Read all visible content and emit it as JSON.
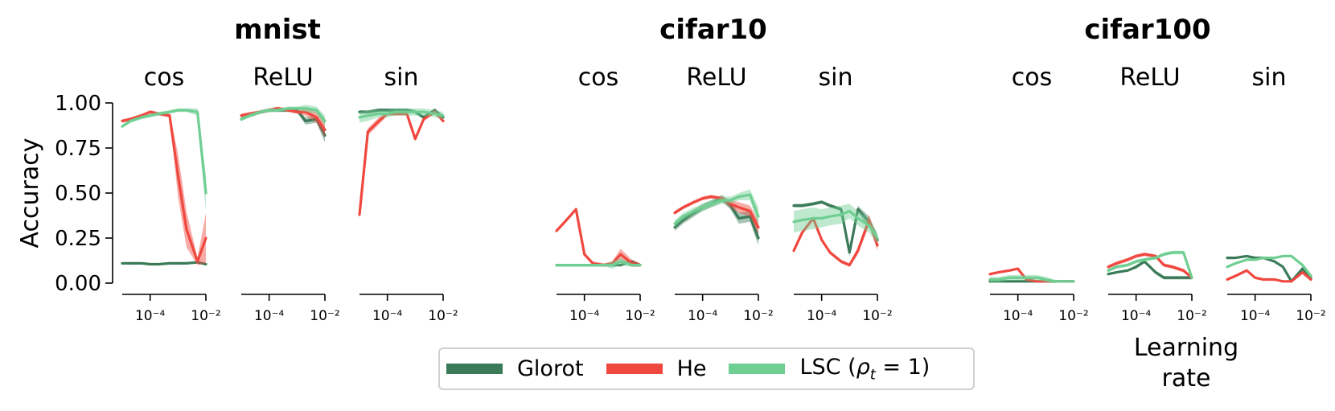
{
  "colors": {
    "glorot": "#3a7a58",
    "he": "#f0473f",
    "lsc": "#6fcf92"
  },
  "legend": [
    {
      "key": "glorot",
      "label": "Glorot"
    },
    {
      "key": "he",
      "label": "He"
    },
    {
      "key": "lsc",
      "label": "LSC (ρt = 1)",
      "label_html": "LSC (<i>ρ</i><sub style=\"font-size:18px\"><i>t</i></sub> = 1)"
    }
  ],
  "chart_data": {
    "type": "line",
    "ylabel": "Accuracy",
    "xlabel": "Learning rate",
    "ylim": [
      0,
      1
    ],
    "yticks": [
      "0.00",
      "0.25",
      "0.50",
      "0.75",
      "1.00"
    ],
    "xscale": "log",
    "xlim": [
      1e-05,
      0.01
    ],
    "xticks": [
      0.0001,
      0.01
    ],
    "xtick_labels": [
      "10⁻⁴",
      "10⁻²"
    ],
    "x": [
      1e-05,
      2e-05,
      5e-05,
      0.0001,
      0.0002,
      0.0005,
      0.001,
      0.002,
      0.005,
      0.01
    ],
    "datasets": [
      {
        "title": "mnist",
        "panels": [
          {
            "activation": "cos",
            "series": [
              {
                "key": "glorot",
                "values": [
                  0.11,
                  0.11,
                  0.11,
                  0.105,
                  0.105,
                  0.11,
                  0.11,
                  0.11,
                  0.115,
                  0.105
                ],
                "band": [
                  0.005,
                  0.005,
                  0.005,
                  0.005,
                  0.005,
                  0.005,
                  0.005,
                  0.005,
                  0.005,
                  0.005
                ]
              },
              {
                "key": "he",
                "values": [
                  0.9,
                  0.91,
                  0.93,
                  0.95,
                  0.94,
                  0.93,
                  0.6,
                  0.3,
                  0.12,
                  0.25
                ],
                "band": [
                  0.01,
                  0.01,
                  0.01,
                  0.01,
                  0.01,
                  0.01,
                  0.12,
                  0.1,
                  0.02,
                  0.14
                ]
              },
              {
                "key": "lsc",
                "values": [
                  0.87,
                  0.9,
                  0.92,
                  0.93,
                  0.94,
                  0.95,
                  0.96,
                  0.96,
                  0.95,
                  0.5
                ],
                "band": [
                  0.01,
                  0.01,
                  0.01,
                  0.01,
                  0.01,
                  0.01,
                  0.01,
                  0.01,
                  0.02,
                  0.1
                ]
              }
            ]
          },
          {
            "activation": "ReLU",
            "series": [
              {
                "key": "glorot",
                "values": [
                  0.91,
                  0.93,
                  0.95,
                  0.96,
                  0.96,
                  0.96,
                  0.96,
                  0.9,
                  0.91,
                  0.82
                ],
                "band": [
                  0.01,
                  0.01,
                  0.01,
                  0.01,
                  0.01,
                  0.01,
                  0.01,
                  0.02,
                  0.02,
                  0.04
                ]
              },
              {
                "key": "he",
                "values": [
                  0.93,
                  0.94,
                  0.95,
                  0.96,
                  0.97,
                  0.96,
                  0.95,
                  0.95,
                  0.92,
                  0.85
                ],
                "band": [
                  0.01,
                  0.01,
                  0.01,
                  0.01,
                  0.01,
                  0.01,
                  0.01,
                  0.02,
                  0.03,
                  0.04
                ]
              },
              {
                "key": "lsc",
                "values": [
                  0.91,
                  0.93,
                  0.95,
                  0.96,
                  0.96,
                  0.97,
                  0.97,
                  0.97,
                  0.96,
                  0.9
                ],
                "band": [
                  0.01,
                  0.01,
                  0.01,
                  0.01,
                  0.01,
                  0.01,
                  0.01,
                  0.02,
                  0.02,
                  0.03
                ]
              }
            ]
          },
          {
            "activation": "sin",
            "series": [
              {
                "key": "glorot",
                "values": [
                  0.95,
                  0.95,
                  0.96,
                  0.96,
                  0.96,
                  0.96,
                  0.95,
                  0.92,
                  0.96,
                  0.92
                ],
                "band": [
                  0.01,
                  0.01,
                  0.01,
                  0.01,
                  0.01,
                  0.01,
                  0.01,
                  0.01,
                  0.01,
                  0.01
                ]
              },
              {
                "key": "he",
                "values": [
                  0.38,
                  0.84,
                  0.9,
                  0.94,
                  0.94,
                  0.94,
                  0.8,
                  0.91,
                  0.95,
                  0.9
                ],
                "band": [
                  0.02,
                  0.02,
                  0.02,
                  0.01,
                  0.01,
                  0.01,
                  0.01,
                  0.01,
                  0.01,
                  0.01
                ]
              },
              {
                "key": "lsc",
                "values": [
                  0.92,
                  0.93,
                  0.94,
                  0.94,
                  0.95,
                  0.95,
                  0.95,
                  0.95,
                  0.94,
                  0.93
                ],
                "band": [
                  0.03,
                  0.03,
                  0.02,
                  0.02,
                  0.02,
                  0.02,
                  0.02,
                  0.02,
                  0.02,
                  0.02
                ]
              }
            ]
          }
        ]
      },
      {
        "title": "cifar10",
        "panels": [
          {
            "activation": "cos",
            "series": [
              {
                "key": "glorot",
                "values": [
                  0.1,
                  0.1,
                  0.1,
                  0.1,
                  0.1,
                  0.1,
                  0.1,
                  0.1,
                  0.12,
                  0.1
                ],
                "band": [
                  0.005,
                  0.005,
                  0.005,
                  0.005,
                  0.005,
                  0.005,
                  0.005,
                  0.005,
                  0.01,
                  0.005
                ]
              },
              {
                "key": "he",
                "values": [
                  0.29,
                  0.34,
                  0.41,
                  0.16,
                  0.11,
                  0.1,
                  0.11,
                  0.16,
                  0.11,
                  0.1
                ],
                "band": [
                  0.01,
                  0.01,
                  0.01,
                  0.01,
                  0.01,
                  0.01,
                  0.01,
                  0.03,
                  0.02,
                  0.01
                ]
              },
              {
                "key": "lsc",
                "values": [
                  0.1,
                  0.1,
                  0.1,
                  0.1,
                  0.1,
                  0.1,
                  0.1,
                  0.12,
                  0.1,
                  0.1
                ],
                "band": [
                  0.005,
                  0.005,
                  0.005,
                  0.005,
                  0.005,
                  0.005,
                  0.02,
                  0.02,
                  0.01,
                  0.005
                ]
              }
            ]
          },
          {
            "activation": "ReLU",
            "series": [
              {
                "key": "glorot",
                "values": [
                  0.31,
                  0.35,
                  0.39,
                  0.42,
                  0.44,
                  0.47,
                  0.43,
                  0.36,
                  0.37,
                  0.25
                ],
                "band": [
                  0.02,
                  0.02,
                  0.02,
                  0.02,
                  0.02,
                  0.02,
                  0.02,
                  0.03,
                  0.03,
                  0.04
                ]
              },
              {
                "key": "he",
                "values": [
                  0.39,
                  0.42,
                  0.45,
                  0.47,
                  0.48,
                  0.47,
                  0.44,
                  0.42,
                  0.4,
                  0.31
                ],
                "band": [
                  0.01,
                  0.01,
                  0.01,
                  0.01,
                  0.01,
                  0.01,
                  0.02,
                  0.03,
                  0.03,
                  0.04
                ]
              },
              {
                "key": "lsc",
                "values": [
                  0.33,
                  0.37,
                  0.4,
                  0.42,
                  0.44,
                  0.46,
                  0.46,
                  0.48,
                  0.49,
                  0.37
                ],
                "band": [
                  0.02,
                  0.02,
                  0.02,
                  0.02,
                  0.02,
                  0.02,
                  0.02,
                  0.02,
                  0.03,
                  0.05
                ]
              }
            ]
          },
          {
            "activation": "sin",
            "series": [
              {
                "key": "glorot",
                "values": [
                  0.43,
                  0.43,
                  0.44,
                  0.45,
                  0.43,
                  0.41,
                  0.17,
                  0.41,
                  0.34,
                  0.24
                ],
                "band": [
                  0.01,
                  0.01,
                  0.01,
                  0.01,
                  0.01,
                  0.01,
                  0.02,
                  0.02,
                  0.03,
                  0.03
                ]
              },
              {
                "key": "he",
                "values": [
                  0.18,
                  0.28,
                  0.36,
                  0.24,
                  0.17,
                  0.12,
                  0.1,
                  0.18,
                  0.35,
                  0.21
                ],
                "band": [
                  0.01,
                  0.01,
                  0.01,
                  0.01,
                  0.01,
                  0.01,
                  0.01,
                  0.02,
                  0.03,
                  0.03
                ]
              },
              {
                "key": "lsc",
                "values": [
                  0.34,
                  0.35,
                  0.36,
                  0.36,
                  0.37,
                  0.38,
                  0.4,
                  0.36,
                  0.32,
                  0.25
                ],
                "band": [
                  0.06,
                  0.06,
                  0.06,
                  0.05,
                  0.05,
                  0.05,
                  0.04,
                  0.04,
                  0.04,
                  0.03
                ]
              }
            ]
          }
        ]
      },
      {
        "title": "cifar100",
        "panels": [
          {
            "activation": "cos",
            "series": [
              {
                "key": "glorot",
                "values": [
                  0.01,
                  0.01,
                  0.01,
                  0.01,
                  0.01,
                  0.01,
                  0.01,
                  0.01,
                  0.01,
                  0.01
                ],
                "band": [
                  0.003,
                  0.003,
                  0.003,
                  0.003,
                  0.003,
                  0.003,
                  0.003,
                  0.003,
                  0.003,
                  0.003
                ]
              },
              {
                "key": "he",
                "values": [
                  0.05,
                  0.06,
                  0.07,
                  0.08,
                  0.02,
                  0.01,
                  0.01,
                  0.01,
                  0.01,
                  0.01
                ],
                "band": [
                  0.005,
                  0.005,
                  0.005,
                  0.005,
                  0.005,
                  0.005,
                  0.005,
                  0.005,
                  0.005,
                  0.005
                ]
              },
              {
                "key": "lsc",
                "values": [
                  0.02,
                  0.02,
                  0.03,
                  0.03,
                  0.03,
                  0.03,
                  0.02,
                  0.01,
                  0.01,
                  0.01
                ],
                "band": [
                  0.015,
                  0.015,
                  0.015,
                  0.015,
                  0.015,
                  0.015,
                  0.015,
                  0.01,
                  0.005,
                  0.005
                ]
              }
            ]
          },
          {
            "activation": "ReLU",
            "series": [
              {
                "key": "glorot",
                "values": [
                  0.05,
                  0.06,
                  0.07,
                  0.09,
                  0.12,
                  0.06,
                  0.03,
                  0.03,
                  0.03,
                  0.03
                ],
                "band": [
                  0.005,
                  0.005,
                  0.005,
                  0.01,
                  0.01,
                  0.01,
                  0.01,
                  0.01,
                  0.01,
                  0.01
                ]
              },
              {
                "key": "he",
                "values": [
                  0.09,
                  0.11,
                  0.13,
                  0.15,
                  0.16,
                  0.15,
                  0.1,
                  0.09,
                  0.07,
                  0.03
                ],
                "band": [
                  0.01,
                  0.01,
                  0.01,
                  0.01,
                  0.01,
                  0.01,
                  0.01,
                  0.01,
                  0.01,
                  0.01
                ]
              },
              {
                "key": "lsc",
                "values": [
                  0.07,
                  0.09,
                  0.1,
                  0.12,
                  0.13,
                  0.14,
                  0.16,
                  0.17,
                  0.17,
                  0.03
                ],
                "band": [
                  0.01,
                  0.01,
                  0.01,
                  0.01,
                  0.01,
                  0.01,
                  0.01,
                  0.01,
                  0.01,
                  0.01
                ]
              }
            ]
          },
          {
            "activation": "sin",
            "series": [
              {
                "key": "glorot",
                "values": [
                  0.14,
                  0.14,
                  0.15,
                  0.14,
                  0.14,
                  0.12,
                  0.09,
                  0.01,
                  0.08,
                  0.03
                ],
                "band": [
                  0.005,
                  0.005,
                  0.005,
                  0.005,
                  0.005,
                  0.005,
                  0.005,
                  0.005,
                  0.01,
                  0.005
                ]
              },
              {
                "key": "he",
                "values": [
                  0.02,
                  0.04,
                  0.07,
                  0.03,
                  0.02,
                  0.02,
                  0.01,
                  0.01,
                  0.06,
                  0.02
                ],
                "band": [
                  0.005,
                  0.005,
                  0.005,
                  0.005,
                  0.005,
                  0.005,
                  0.005,
                  0.005,
                  0.005,
                  0.005
                ]
              },
              {
                "key": "lsc",
                "values": [
                  0.09,
                  0.11,
                  0.13,
                  0.13,
                  0.14,
                  0.14,
                  0.15,
                  0.15,
                  0.1,
                  0.04
                ],
                "band": [
                  0.005,
                  0.005,
                  0.005,
                  0.005,
                  0.005,
                  0.005,
                  0.005,
                  0.005,
                  0.01,
                  0.005
                ]
              }
            ]
          }
        ]
      }
    ]
  }
}
